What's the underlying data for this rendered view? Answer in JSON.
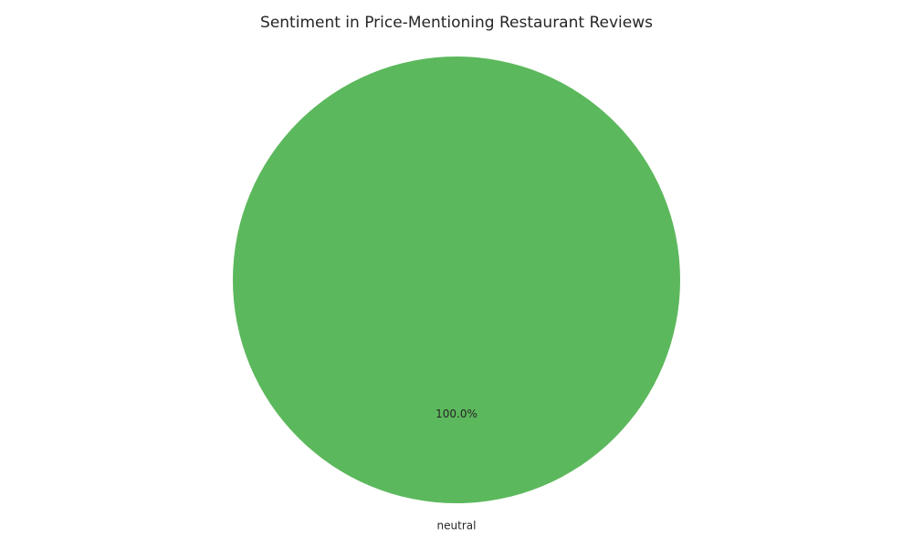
{
  "chart_data": {
    "type": "pie",
    "title": "Sentiment in Price-Mentioning Restaurant Reviews",
    "slices": [
      {
        "label": "neutral",
        "value": 100.0,
        "percent_label": "100.0%",
        "color": "#5cb85c"
      }
    ]
  }
}
